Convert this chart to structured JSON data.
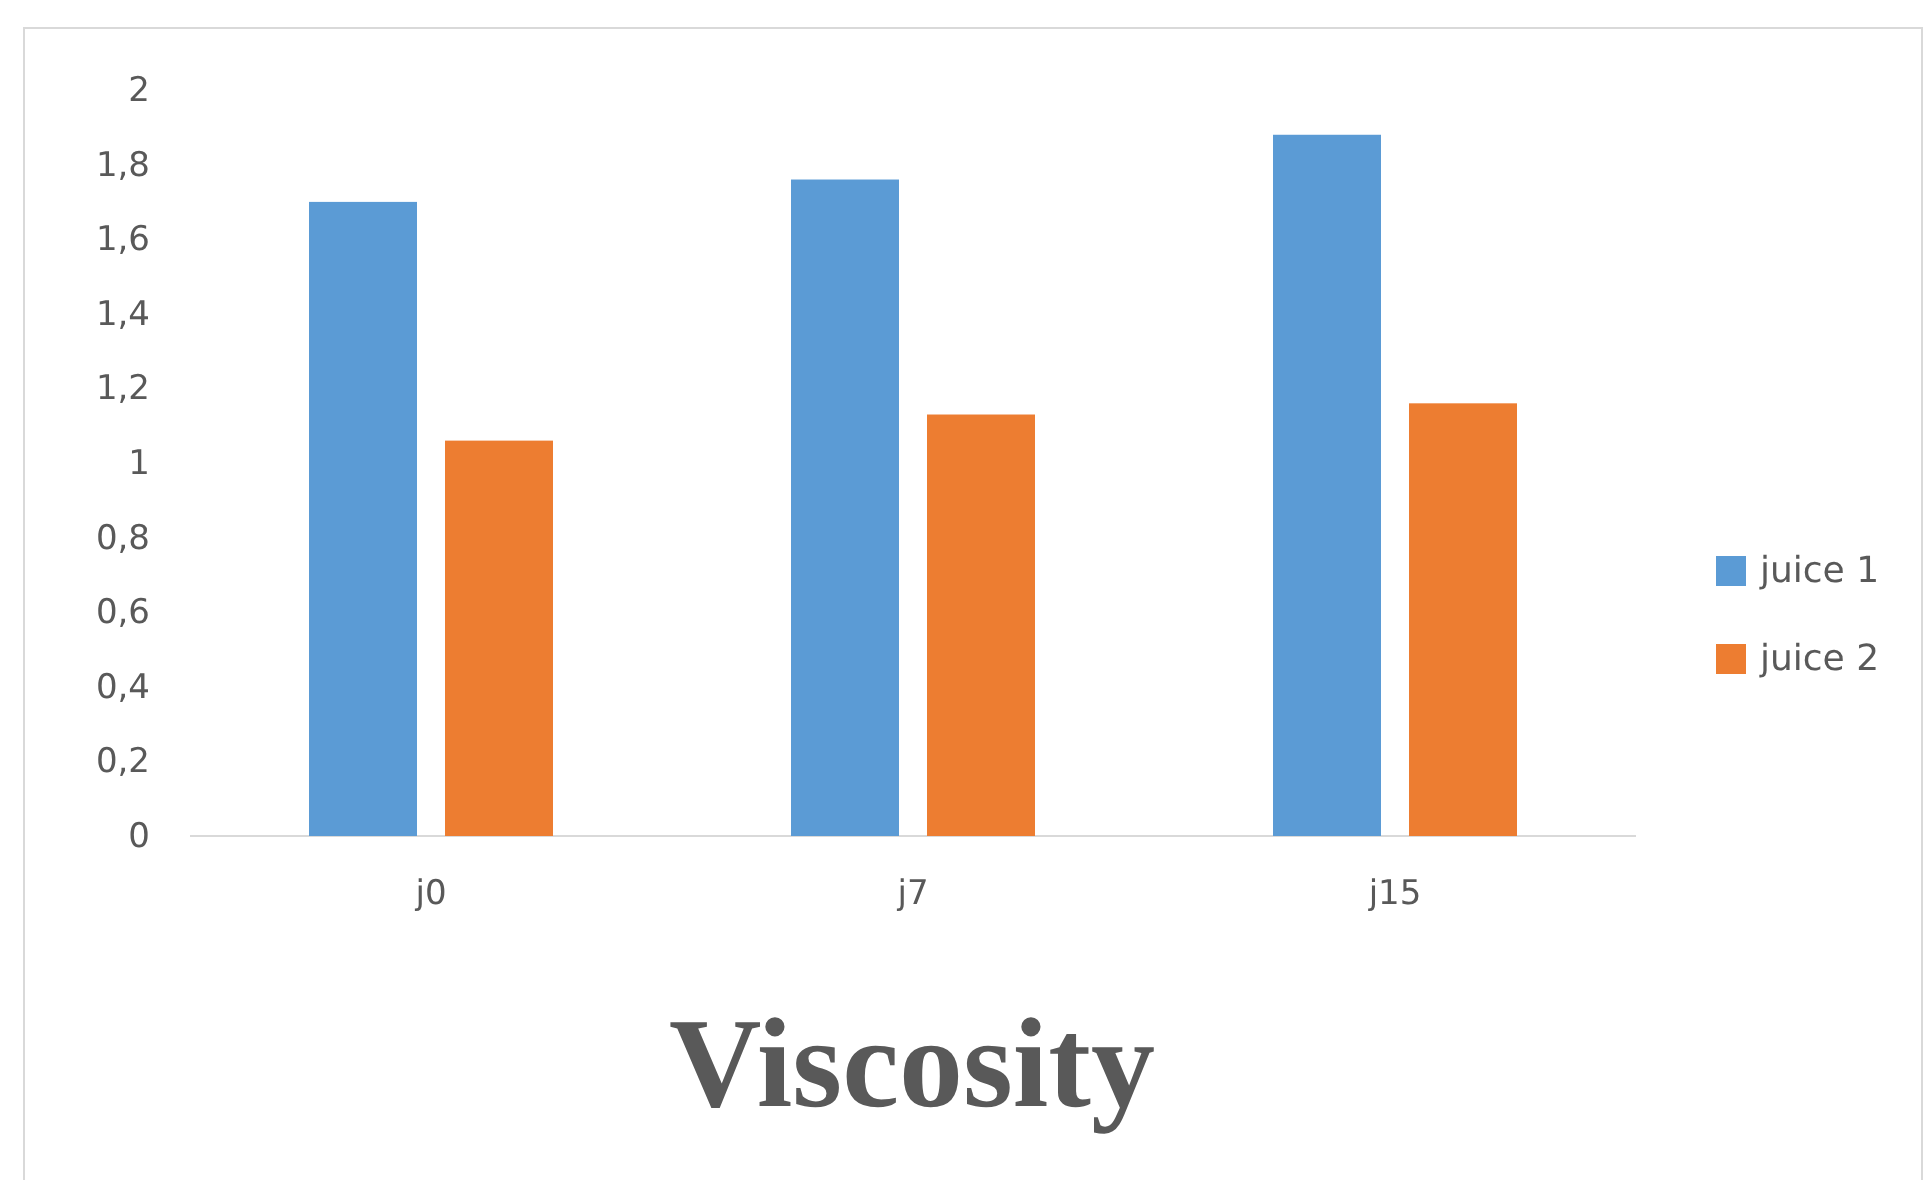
{
  "chart_data": {
    "type": "bar",
    "title": "Viscosity",
    "categories": [
      "j0",
      "j7",
      "j15"
    ],
    "series": [
      {
        "name": "juice 1",
        "color": "#5b9bd5",
        "values": [
          1.7,
          1.76,
          1.88
        ]
      },
      {
        "name": "juice 2",
        "color": "#ed7d31",
        "values": [
          1.06,
          1.13,
          1.16
        ]
      }
    ],
    "ylim": [
      0,
      2
    ],
    "yticks": [
      0,
      {
        "value": 0.2,
        "label": "0,2"
      },
      {
        "value": 0.4,
        "label": "0,4"
      },
      {
        "value": 0.6,
        "label": "0,6"
      },
      {
        "value": 0.8,
        "label": "0,8"
      },
      1,
      {
        "value": 1.2,
        "label": "1,2"
      },
      {
        "value": 1.4,
        "label": "1,4"
      },
      {
        "value": 1.6,
        "label": "1,6"
      },
      {
        "value": 1.8,
        "label": "1,8"
      },
      2
    ],
    "grid": false,
    "legend": "right"
  }
}
